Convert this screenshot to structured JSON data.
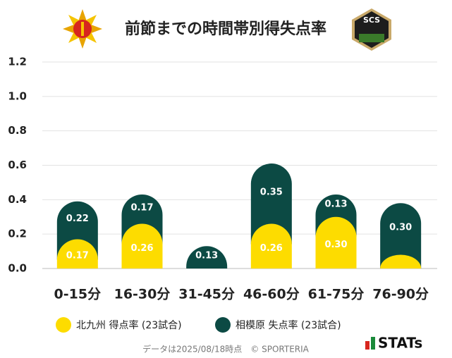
{
  "chart_data": {
    "type": "bar",
    "stacked": true,
    "title": "前節までの時間帯別得失点率",
    "categories": [
      "0-15分",
      "16-30分",
      "31-45分",
      "46-60分",
      "61-75分",
      "76-90分"
    ],
    "series": [
      {
        "name": "北九州 得点率 (23試合)",
        "color": "#fddc00",
        "values": [
          0.17,
          0.26,
          0,
          0.26,
          0.3,
          0.08
        ],
        "value_labels": [
          "0.17",
          "0.26",
          null,
          "0.26",
          "0.30",
          null
        ]
      },
      {
        "name": "相模原 失点率 (23試合)",
        "color": "#0c4a44",
        "values": [
          0.22,
          0.17,
          0.13,
          0.35,
          0.13,
          0.3
        ],
        "value_labels": [
          "0.22",
          "0.17",
          "0.13",
          "0.35",
          "0.13",
          "0.30"
        ]
      }
    ],
    "ylim": [
      0,
      1.2
    ],
    "yticks": [
      {
        "value": 0,
        "label": "0.0"
      },
      {
        "value": 0.2,
        "label": "0.2"
      },
      {
        "value": 0.4,
        "label": "0.4"
      },
      {
        "value": 0.6,
        "label": "0.6"
      },
      {
        "value": 0.8,
        "label": "0.8"
      },
      {
        "value": 1.0,
        "label": "1.0"
      },
      {
        "value": 1.2,
        "label": "1.2"
      }
    ],
    "grid": true,
    "badge": "SCS",
    "footnote": "データは2025/08/18時点　© SPORTERIA",
    "brand": "STATs"
  }
}
